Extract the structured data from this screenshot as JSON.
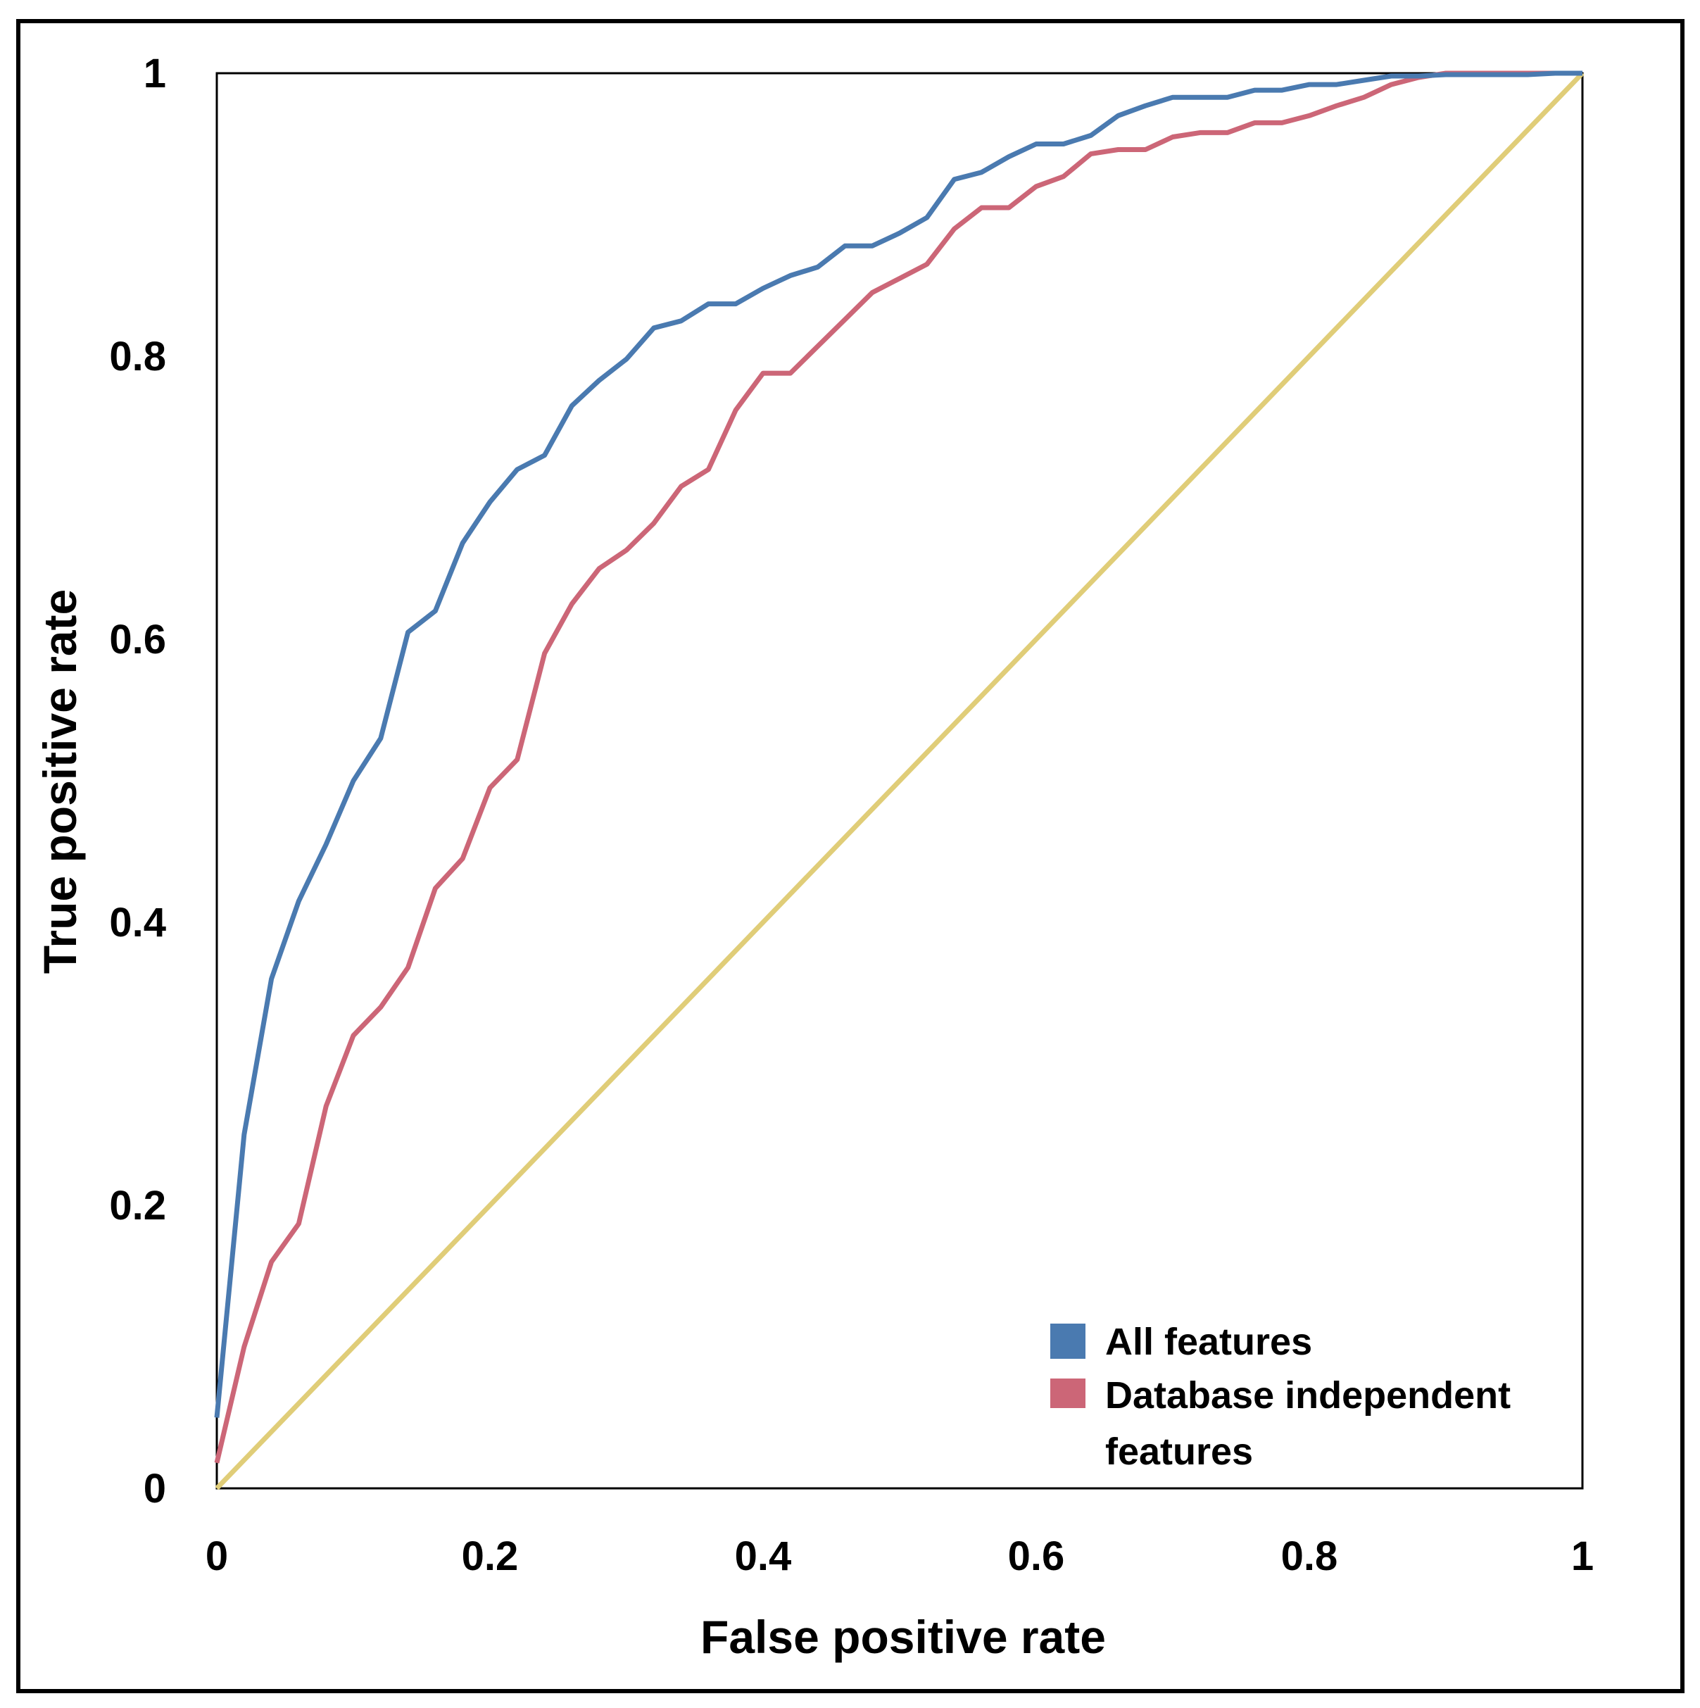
{
  "chart_data": {
    "type": "line",
    "title": "",
    "xlabel": "False positive rate",
    "ylabel": "True positive rate",
    "xlim": [
      0,
      1
    ],
    "ylim": [
      0,
      1
    ],
    "x_ticks": [
      "0",
      "0.2",
      "0.4",
      "0.6",
      "0.8",
      "1"
    ],
    "y_ticks": [
      "0",
      "0.2",
      "0.4",
      "0.6",
      "0.8",
      "1"
    ],
    "grid": false,
    "legend_position": "bottom-right",
    "series": [
      {
        "name": "All features",
        "color": "#4a7ab0",
        "points": [
          [
            0.0,
            0.05
          ],
          [
            0.02,
            0.25
          ],
          [
            0.04,
            0.36
          ],
          [
            0.06,
            0.415
          ],
          [
            0.08,
            0.455
          ],
          [
            0.1,
            0.5
          ],
          [
            0.12,
            0.53
          ],
          [
            0.14,
            0.605
          ],
          [
            0.16,
            0.62
          ],
          [
            0.18,
            0.668
          ],
          [
            0.2,
            0.697
          ],
          [
            0.22,
            0.72
          ],
          [
            0.24,
            0.73
          ],
          [
            0.26,
            0.765
          ],
          [
            0.28,
            0.783
          ],
          [
            0.3,
            0.798
          ],
          [
            0.32,
            0.82
          ],
          [
            0.34,
            0.825
          ],
          [
            0.36,
            0.837
          ],
          [
            0.38,
            0.837
          ],
          [
            0.4,
            0.848
          ],
          [
            0.42,
            0.857
          ],
          [
            0.44,
            0.863
          ],
          [
            0.46,
            0.878
          ],
          [
            0.48,
            0.878
          ],
          [
            0.5,
            0.887
          ],
          [
            0.52,
            0.898
          ],
          [
            0.54,
            0.925
          ],
          [
            0.56,
            0.93
          ],
          [
            0.58,
            0.941
          ],
          [
            0.6,
            0.95
          ],
          [
            0.62,
            0.95
          ],
          [
            0.64,
            0.956
          ],
          [
            0.66,
            0.97
          ],
          [
            0.68,
            0.977
          ],
          [
            0.7,
            0.983
          ],
          [
            0.72,
            0.983
          ],
          [
            0.74,
            0.983
          ],
          [
            0.76,
            0.988
          ],
          [
            0.78,
            0.988
          ],
          [
            0.8,
            0.992
          ],
          [
            0.82,
            0.992
          ],
          [
            0.84,
            0.995
          ],
          [
            0.86,
            0.998
          ],
          [
            0.88,
            0.998
          ],
          [
            0.9,
            0.999
          ],
          [
            0.92,
            0.999
          ],
          [
            0.94,
            0.999
          ],
          [
            0.96,
            0.999
          ],
          [
            0.98,
            1.0
          ],
          [
            1.0,
            1.0
          ]
        ]
      },
      {
        "name": "Database independent features",
        "color": "#cc6677",
        "points": [
          [
            0.0,
            0.018
          ],
          [
            0.02,
            0.1
          ],
          [
            0.04,
            0.16
          ],
          [
            0.06,
            0.187
          ],
          [
            0.08,
            0.27
          ],
          [
            0.1,
            0.32
          ],
          [
            0.12,
            0.34
          ],
          [
            0.14,
            0.368
          ],
          [
            0.16,
            0.424
          ],
          [
            0.18,
            0.445
          ],
          [
            0.2,
            0.495
          ],
          [
            0.22,
            0.515
          ],
          [
            0.24,
            0.59
          ],
          [
            0.26,
            0.625
          ],
          [
            0.28,
            0.65
          ],
          [
            0.3,
            0.663
          ],
          [
            0.32,
            0.682
          ],
          [
            0.34,
            0.708
          ],
          [
            0.36,
            0.72
          ],
          [
            0.38,
            0.762
          ],
          [
            0.4,
            0.788
          ],
          [
            0.42,
            0.788
          ],
          [
            0.44,
            0.807
          ],
          [
            0.46,
            0.826
          ],
          [
            0.48,
            0.845
          ],
          [
            0.5,
            0.855
          ],
          [
            0.52,
            0.865
          ],
          [
            0.54,
            0.89
          ],
          [
            0.56,
            0.905
          ],
          [
            0.58,
            0.905
          ],
          [
            0.6,
            0.92
          ],
          [
            0.62,
            0.927
          ],
          [
            0.64,
            0.943
          ],
          [
            0.66,
            0.946
          ],
          [
            0.68,
            0.946
          ],
          [
            0.7,
            0.955
          ],
          [
            0.72,
            0.958
          ],
          [
            0.74,
            0.958
          ],
          [
            0.76,
            0.965
          ],
          [
            0.78,
            0.965
          ],
          [
            0.8,
            0.97
          ],
          [
            0.82,
            0.977
          ],
          [
            0.84,
            0.983
          ],
          [
            0.86,
            0.992
          ],
          [
            0.88,
            0.997
          ],
          [
            0.9,
            1.0
          ],
          [
            0.92,
            1.0
          ],
          [
            0.94,
            1.0
          ],
          [
            0.96,
            1.0
          ],
          [
            0.98,
            1.0
          ],
          [
            1.0,
            1.0
          ]
        ]
      },
      {
        "name": "",
        "color": "#e0cd78",
        "points": [
          [
            0.0,
            0.0
          ],
          [
            1.0,
            1.0
          ]
        ]
      }
    ],
    "legend": {
      "entries": [
        {
          "label_lines": [
            "All features"
          ],
          "color": "#4a7ab0"
        },
        {
          "label_lines": [
            "Database independent",
            "features"
          ],
          "color": "#cc6677"
        }
      ]
    }
  }
}
